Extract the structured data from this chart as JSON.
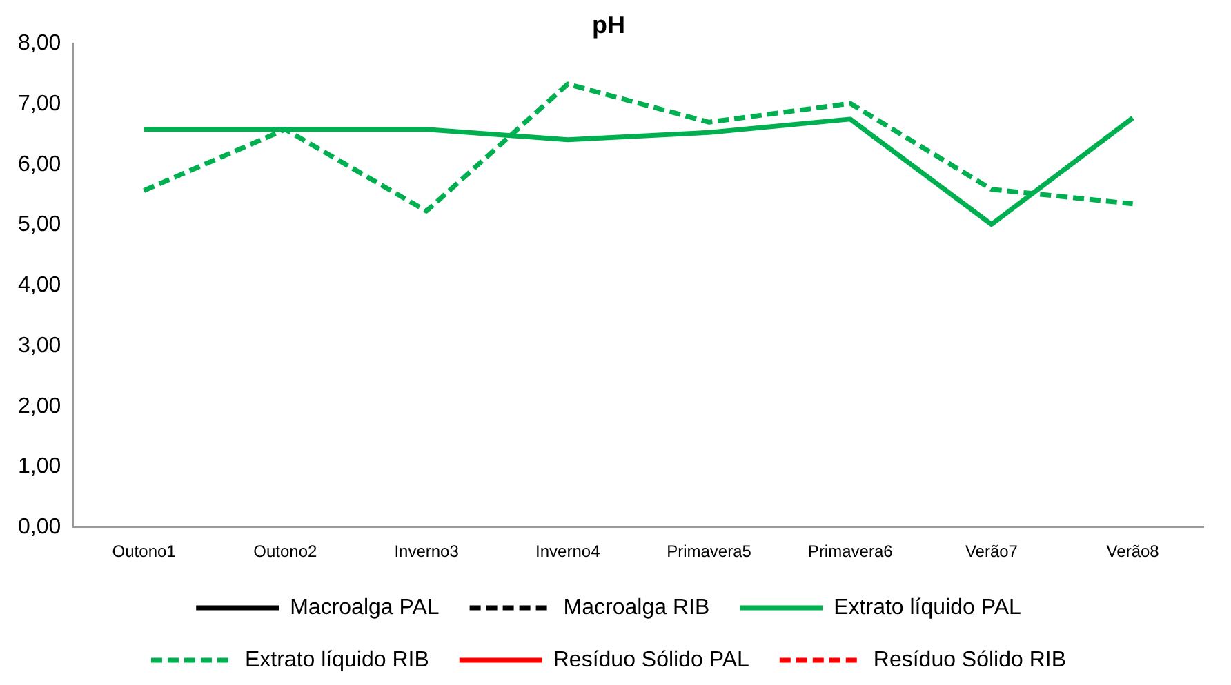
{
  "chart_data": {
    "type": "line",
    "title": "pH",
    "categories": [
      "Outono1",
      "Outono2",
      "Inverno3",
      "Inverno4",
      "Primavera5",
      "Primavera6",
      "Verão7",
      "Verão8"
    ],
    "series": [
      {
        "name": "Macroalga PAL",
        "color": "#000000",
        "line_style": "solid",
        "values": [
          null,
          null,
          null,
          null,
          null,
          null,
          null,
          null
        ]
      },
      {
        "name": "Macroalga RIB",
        "color": "#000000",
        "line_style": "dashed",
        "values": [
          null,
          null,
          null,
          null,
          null,
          null,
          null,
          null
        ]
      },
      {
        "name": "Extrato líquido PAL",
        "color": "#00b050",
        "line_style": "solid",
        "values": [
          6.58,
          6.58,
          6.58,
          6.41,
          6.53,
          6.75,
          5.01,
          6.77
        ]
      },
      {
        "name": "Extrato líquido RIB",
        "color": "#00b050",
        "line_style": "dashed",
        "values": [
          5.57,
          6.58,
          5.23,
          7.33,
          6.7,
          7.01,
          5.59,
          5.35
        ]
      },
      {
        "name": "Resíduo Sólido PAL",
        "color": "#ff0000",
        "line_style": "solid",
        "values": [
          null,
          null,
          null,
          null,
          null,
          null,
          null,
          null
        ]
      },
      {
        "name": "Resíduo Sólido RIB",
        "color": "#ff0000",
        "line_style": "dashed",
        "values": [
          null,
          null,
          null,
          null,
          null,
          null,
          null,
          null
        ]
      }
    ],
    "ylim": [
      0,
      8
    ],
    "yticks": [
      {
        "value": 0,
        "label": "0,00"
      },
      {
        "value": 1,
        "label": "1,00"
      },
      {
        "value": 2,
        "label": "2,00"
      },
      {
        "value": 3,
        "label": "3,00"
      },
      {
        "value": 4,
        "label": "4,00"
      },
      {
        "value": 5,
        "label": "5,00"
      },
      {
        "value": 6,
        "label": "6,00"
      },
      {
        "value": 7,
        "label": "7,00"
      },
      {
        "value": 8,
        "label": "8,00"
      }
    ],
    "grid": false,
    "legend": "bottom",
    "marker": "none"
  }
}
